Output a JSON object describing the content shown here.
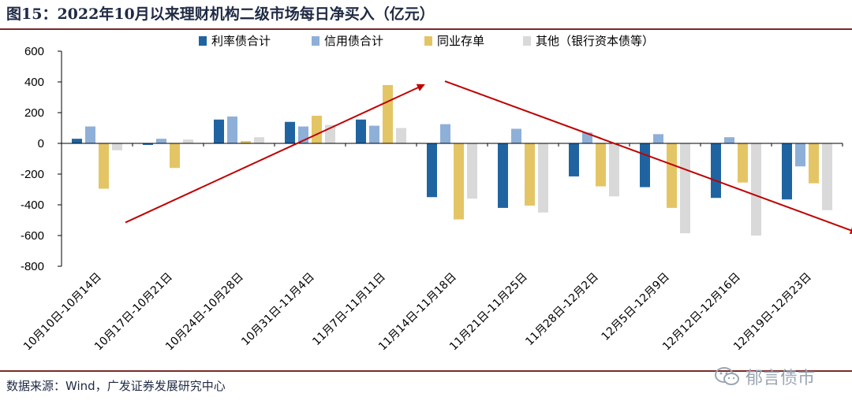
{
  "title": "图15：2022年10月以来理财机构二级市场每日净买入（亿元）",
  "source": "数据来源：Wind，广发证券发展研究中心",
  "watermark": "郁言债市",
  "chart_data": {
    "type": "bar",
    "title": "图15：2022年10月以来理财机构二级市场每日净买入（亿元）",
    "xlabel": "",
    "ylabel": "",
    "ylim": [
      -800,
      600
    ],
    "yticks": [
      600,
      400,
      200,
      0,
      -200,
      -400,
      -600,
      -800
    ],
    "grid": false,
    "legend_position": "top",
    "categories": [
      "10月10日-10月14日",
      "10月17日-10月21日",
      "10月24日-10月28日",
      "10月31日-11月4日",
      "11月7日-11月11日",
      "11月14日-11月18日",
      "11月21日-11月25日",
      "11月28日-12月2日",
      "12月5日-12月9日",
      "12月12日-12月16日",
      "12月19日-12月23日"
    ],
    "series": [
      {
        "name": "利率债合计",
        "color": "#1f64a0",
        "values": [
          30,
          -10,
          155,
          140,
          155,
          -350,
          -420,
          -215,
          -285,
          -355,
          -365
        ]
      },
      {
        "name": "信用债合计",
        "color": "#8eb0d8",
        "values": [
          110,
          30,
          175,
          110,
          115,
          125,
          95,
          70,
          60,
          40,
          -150
        ]
      },
      {
        "name": "同业存单",
        "color": "#e4c566",
        "values": [
          -295,
          -160,
          15,
          180,
          380,
          -495,
          -405,
          -280,
          -420,
          -255,
          -260
        ]
      },
      {
        "name": "其他（银行资本债等）",
        "color": "#d9d9d9",
        "values": [
          -45,
          25,
          40,
          120,
          100,
          -360,
          -450,
          -345,
          -585,
          -600,
          -435
        ]
      }
    ],
    "annotations": [
      {
        "type": "arrow",
        "from": [
          0.4,
          -515
        ],
        "to": [
          4.6,
          380
        ],
        "color": "#c00000"
      },
      {
        "type": "arrow",
        "from": [
          4.9,
          405
        ],
        "to": [
          10.7,
          -580
        ],
        "color": "#c00000"
      }
    ]
  }
}
